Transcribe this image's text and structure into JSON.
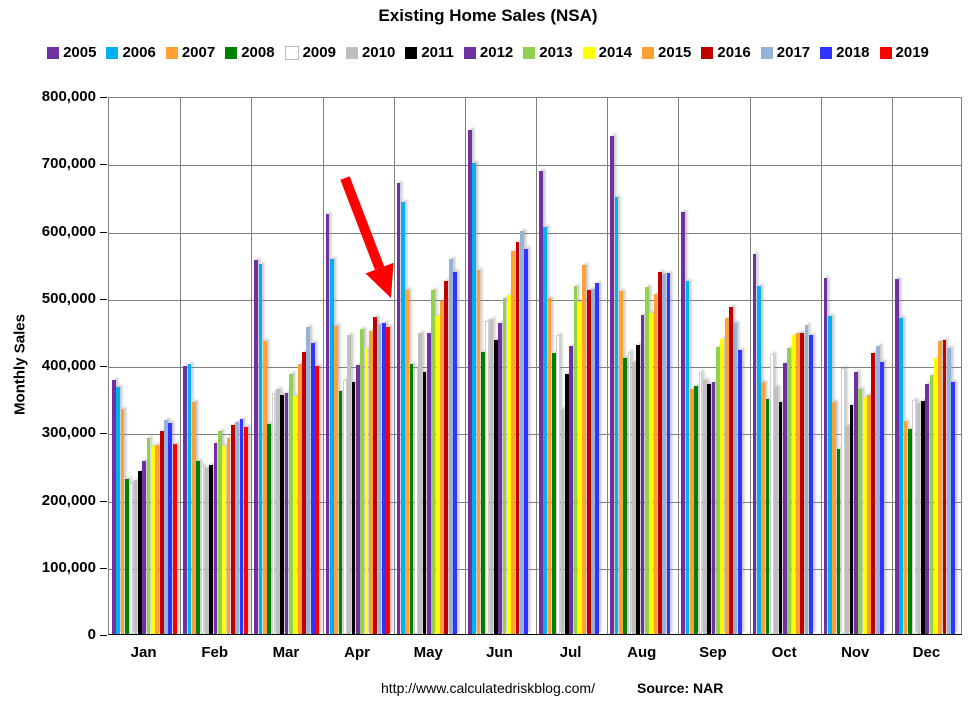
{
  "title": "Existing Home Sales (NSA)",
  "y_axis": {
    "label": "Monthly Sales",
    "tick_labels": [
      "800,000",
      "700,000",
      "600,000",
      "500,000",
      "400,000",
      "300,000",
      "200,000",
      "100,000",
      "0"
    ]
  },
  "footer": {
    "url": "http://www.calculatedriskblog.com/",
    "source": "Source: NAR"
  },
  "chart_data": {
    "type": "bar",
    "title": "Existing Home Sales (NSA)",
    "xlabel": "",
    "ylabel": "Monthly Sales",
    "ylim": [
      0,
      800000
    ],
    "ytick_step": 100000,
    "grid": true,
    "legend_position": "top",
    "categories": [
      "Jan",
      "Feb",
      "Mar",
      "Apr",
      "May",
      "Jun",
      "Jul",
      "Aug",
      "Sep",
      "Oct",
      "Nov",
      "Dec"
    ],
    "series": [
      {
        "name": "2005",
        "color": "#7030A0",
        "values": [
          378000,
          398000,
          556000,
          625000,
          670000,
          750000,
          688000,
          740000,
          628000,
          565000,
          530000,
          528000
        ]
      },
      {
        "name": "2006",
        "color": "#00B0F0",
        "values": [
          368000,
          402000,
          550000,
          558000,
          643000,
          700000,
          605000,
          650000,
          525000,
          518000,
          473000,
          470000
        ]
      },
      {
        "name": "2007",
        "color": "#FFA033",
        "values": [
          335000,
          345000,
          436000,
          458000,
          512000,
          542000,
          500000,
          510000,
          365000,
          375000,
          345000,
          317000
        ]
      },
      {
        "name": "2008",
        "color": "#008000",
        "values": [
          231000,
          258000,
          313000,
          362000,
          402000,
          420000,
          418000,
          410000,
          369000,
          350000,
          275000,
          305000
        ]
      },
      {
        "name": "2009",
        "color": "#FFFFFF",
        "values": [
          225000,
          250000,
          358000,
          378000,
          395000,
          465000,
          445000,
          420000,
          390000,
          417000,
          396000,
          348000
        ]
      },
      {
        "name": "2010",
        "color": "#BFBFBF",
        "values": [
          229000,
          247000,
          365000,
          445000,
          447000,
          468000,
          335000,
          405000,
          378000,
          368000,
          310000,
          343000
        ]
      },
      {
        "name": "2011",
        "color": "#000000",
        "values": [
          243000,
          252000,
          355000,
          375000,
          390000,
          437000,
          387000,
          430000,
          372000,
          345000,
          340000,
          347000
        ]
      },
      {
        "name": "2012",
        "color": "#7030A0",
        "values": [
          258000,
          284000,
          359000,
          400000,
          447000,
          462000,
          429000,
          475000,
          375000,
          403000,
          389000,
          372000
        ]
      },
      {
        "name": "2013",
        "color": "#92D050",
        "values": [
          291000,
          302000,
          387000,
          453000,
          512000,
          500000,
          518000,
          516000,
          427000,
          425000,
          365000,
          385000
        ]
      },
      {
        "name": "2014",
        "color": "#FFFF00",
        "values": [
          280000,
          279000,
          354000,
          426000,
          473000,
          504000,
          494000,
          478000,
          438000,
          445000,
          352000,
          411000
        ]
      },
      {
        "name": "2015",
        "color": "#FFA033",
        "values": [
          281000,
          292000,
          402000,
          451000,
          495000,
          570000,
          548000,
          505000,
          470000,
          447000,
          355000,
          436000
        ]
      },
      {
        "name": "2016",
        "color": "#C00000",
        "values": [
          302000,
          311000,
          420000,
          471000,
          525000,
          583000,
          511000,
          538000,
          486000,
          448000,
          418000,
          437000
        ]
      },
      {
        "name": "2017",
        "color": "#95B3D7",
        "values": [
          318000,
          316000,
          457000,
          461000,
          558000,
          600000,
          513000,
          535000,
          462000,
          460000,
          428000,
          426000
        ]
      },
      {
        "name": "2018",
        "color": "#3333FF",
        "values": [
          314000,
          320000,
          432000,
          463000,
          539000,
          572000,
          522000,
          537000,
          423000,
          445000,
          405000,
          375000
        ]
      },
      {
        "name": "2019",
        "color": "#FF0000",
        "values": [
          283000,
          308000,
          398000,
          457000,
          null,
          null,
          null,
          null,
          null,
          null,
          null,
          null
        ]
      }
    ],
    "annotation_arrow": {
      "color": "#FF0000",
      "points_at": "Apr 2019 bar",
      "from": [
        345,
        178
      ],
      "to": [
        391,
        298
      ]
    }
  }
}
